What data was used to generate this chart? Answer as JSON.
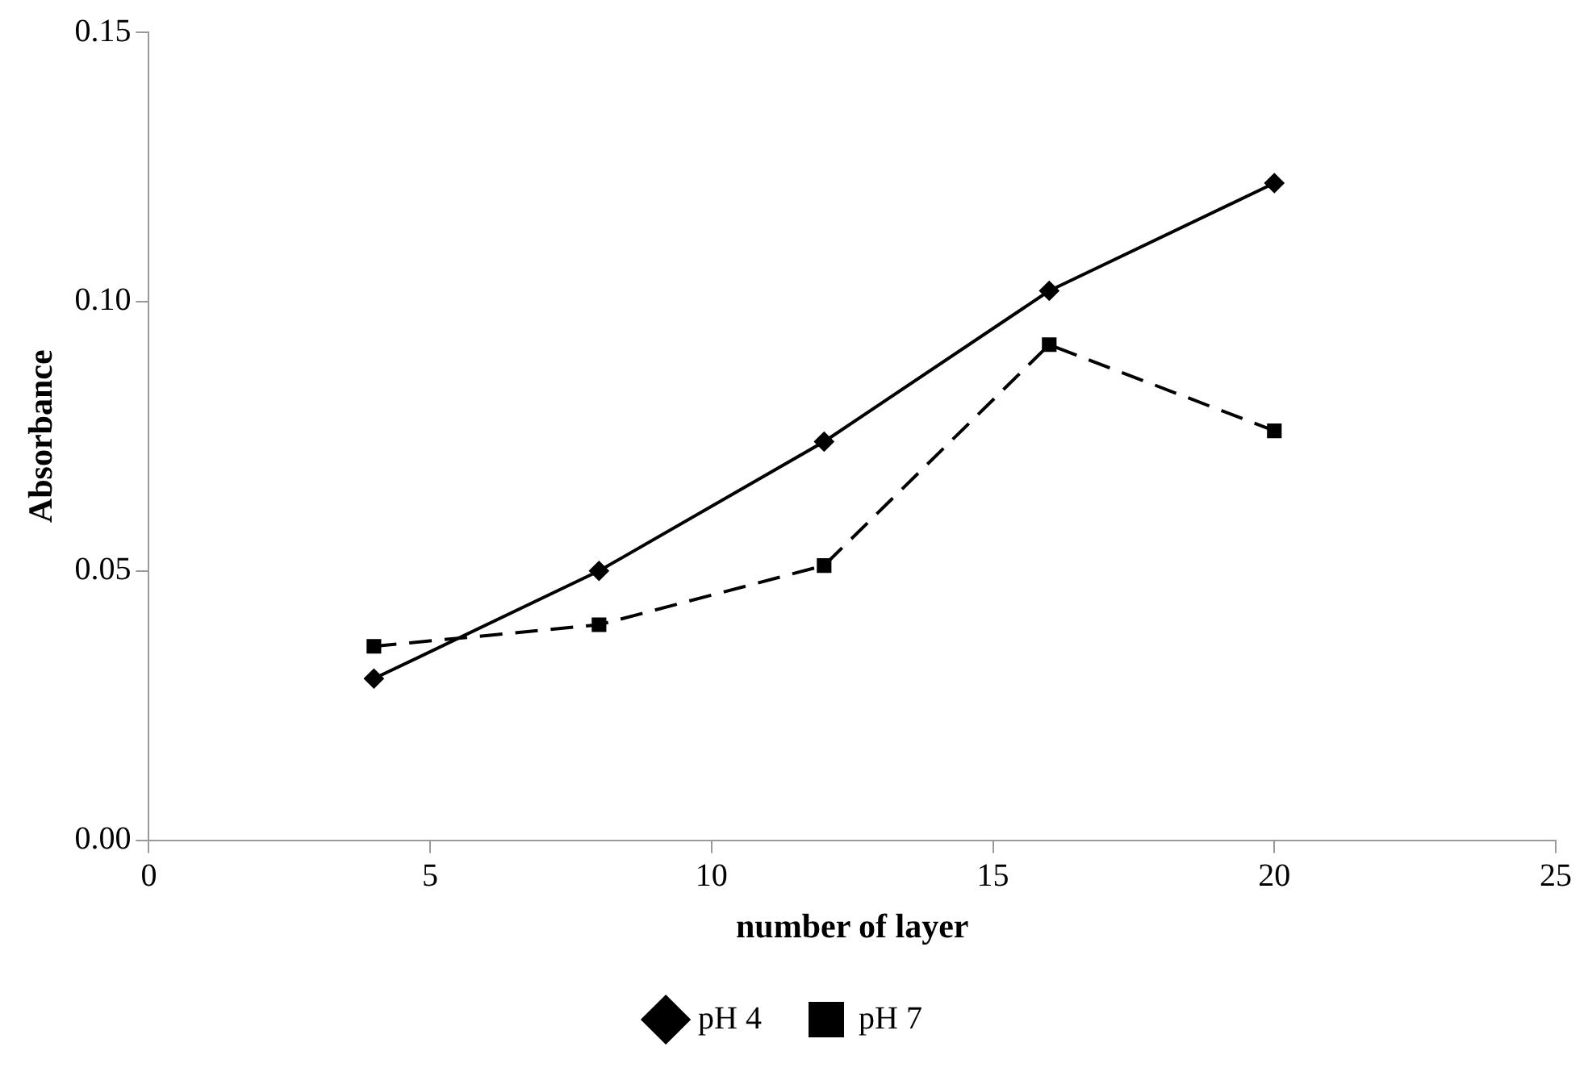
{
  "chart_data": {
    "type": "line",
    "xlabel": "number of layer",
    "ylabel": "Absorbance",
    "x": [
      4,
      8,
      12,
      16,
      20
    ],
    "series": [
      {
        "name": "pH 4",
        "color": "#000000",
        "marker": "diamond",
        "line_style": "solid",
        "values": [
          0.03,
          0.05,
          0.074,
          0.102,
          0.122
        ]
      },
      {
        "name": "pH 7",
        "color": "#000000",
        "marker": "square",
        "line_style": "dashed",
        "values": [
          0.036,
          0.04,
          0.051,
          0.092,
          0.076
        ]
      }
    ],
    "xlim": [
      0,
      25
    ],
    "xticks": [
      0,
      5,
      10,
      15,
      20,
      25
    ],
    "ylim": [
      0,
      0.15
    ],
    "yticks": [
      {
        "value": 0,
        "label": "0.00"
      },
      {
        "value": 0.05,
        "label": "0.05"
      },
      {
        "value": 0.1,
        "label": "0.10"
      },
      {
        "value": 0.15,
        "label": "0.15"
      }
    ],
    "grid": false,
    "legend": "bottom"
  }
}
